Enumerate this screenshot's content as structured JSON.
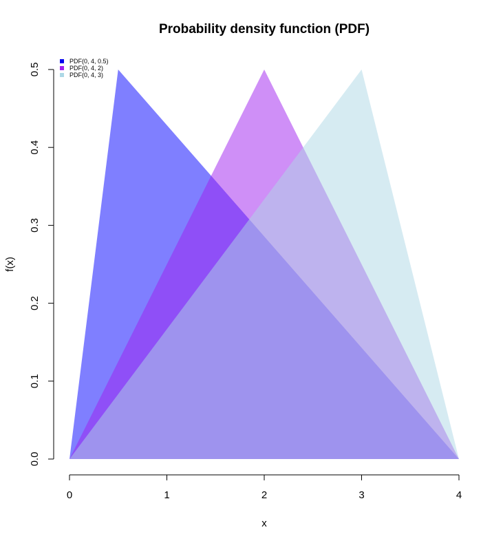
{
  "chart_data": {
    "type": "area",
    "title": "Probability density function (PDF)",
    "xlabel": "x",
    "ylabel": "f(x)",
    "xlim": [
      0,
      4
    ],
    "ylim": [
      0,
      0.5
    ],
    "x_ticks": [
      "0",
      "1",
      "2",
      "3",
      "4"
    ],
    "y_ticks": [
      "0.0",
      "0.1",
      "0.2",
      "0.3",
      "0.4",
      "0.5"
    ],
    "legend_position": "top-left",
    "grid": false,
    "series": [
      {
        "name": "PDF(0, 4, 0.5)",
        "legend_color": "#0000ee",
        "fill": "rgba(0,0,255,0.5)",
        "x": [
          0,
          0.5,
          4
        ],
        "y": [
          0,
          0.5,
          0
        ]
      },
      {
        "name": "PDF(0, 4, 2)",
        "legend_color": "#a020f0",
        "fill": "rgba(160,32,240,0.5)",
        "x": [
          0,
          2,
          4
        ],
        "y": [
          0,
          0.5,
          0
        ]
      },
      {
        "name": "PDF(0, 4, 3)",
        "legend_color": "#add8e6",
        "fill": "rgba(173,216,230,0.5)",
        "x": [
          0,
          3,
          4
        ],
        "y": [
          0,
          0.5,
          0
        ]
      }
    ]
  }
}
